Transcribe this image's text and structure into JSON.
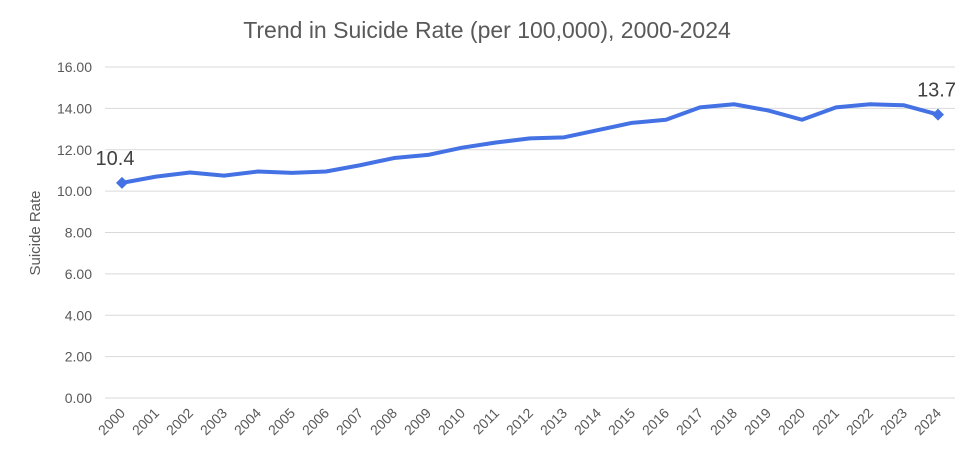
{
  "chart_data": {
    "type": "line",
    "title": "Trend in Suicide Rate (per 100,000), 2000-2024",
    "xlabel": "",
    "ylabel": "Suicide Rate",
    "ylim": [
      0,
      16
    ],
    "yticks": [
      "0.00",
      "2.00",
      "4.00",
      "6.00",
      "8.00",
      "10.00",
      "12.00",
      "14.00",
      "16.00"
    ],
    "categories": [
      "2000",
      "2001",
      "2002",
      "2003",
      "2004",
      "2005",
      "2006",
      "2007",
      "2008",
      "2009",
      "2010",
      "2011",
      "2012",
      "2013",
      "2014",
      "2015",
      "2016",
      "2017",
      "2018",
      "2019",
      "2020",
      "2021",
      "2022",
      "2023",
      "2024"
    ],
    "series": [
      {
        "name": "Suicide Rate",
        "color": "#4472e4",
        "values": [
          10.4,
          10.7,
          10.9,
          10.75,
          10.95,
          10.88,
          10.95,
          11.25,
          11.6,
          11.75,
          12.1,
          12.35,
          12.55,
          12.6,
          12.95,
          13.3,
          13.45,
          14.05,
          14.2,
          13.9,
          13.45,
          14.05,
          14.2,
          14.15,
          13.7
        ]
      }
    ],
    "data_labels": [
      {
        "index": 0,
        "text": "10.4"
      },
      {
        "index": 24,
        "text": "13.7"
      }
    ],
    "grid": true
  }
}
